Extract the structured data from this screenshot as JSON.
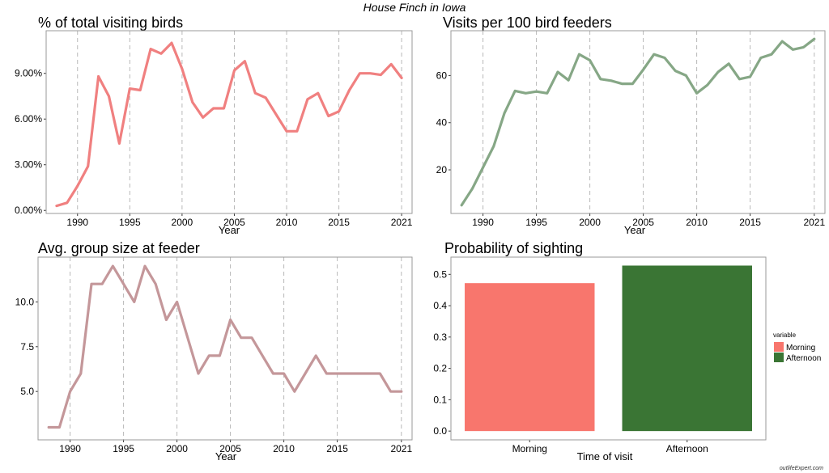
{
  "suptitle": "House Finch in Iowa",
  "watermark": "outlifeExpert.com",
  "chart_data": [
    {
      "type": "line",
      "title": "% of total visiting birds",
      "xlabel": "Year",
      "ylabel": "",
      "color": "#f08080",
      "xlim": [
        1987,
        2022
      ],
      "ylim": [
        -0.2,
        11.8
      ],
      "x_ticks": [
        1990,
        1995,
        2000,
        2005,
        2010,
        2015,
        2021
      ],
      "x_tick_labels": [
        "1990",
        "1995",
        "2000",
        "2005",
        "2010",
        "2015",
        "2021"
      ],
      "y_ticks": [
        0,
        3,
        6,
        9
      ],
      "y_tick_labels": [
        "0.00%",
        "3.00%",
        "6.00%",
        "9.00%"
      ],
      "x": [
        1988,
        1989,
        1990,
        1991,
        1992,
        1993,
        1994,
        1995,
        1996,
        1997,
        1998,
        1999,
        2000,
        2001,
        2002,
        2003,
        2004,
        2005,
        2006,
        2007,
        2008,
        2009,
        2010,
        2011,
        2012,
        2013,
        2014,
        2015,
        2016,
        2017,
        2018,
        2019,
        2020,
        2021
      ],
      "y": [
        0.3,
        0.5,
        1.6,
        2.9,
        8.8,
        7.5,
        4.4,
        8.0,
        7.9,
        10.6,
        10.3,
        11.0,
        9.3,
        7.1,
        6.1,
        6.7,
        6.7,
        9.2,
        9.8,
        7.7,
        7.4,
        6.3,
        5.2,
        5.2,
        7.3,
        7.7,
        6.2,
        6.5,
        7.9,
        9.0,
        9.0,
        8.9,
        9.6,
        8.7
      ]
    },
    {
      "type": "line",
      "title": "Visits per 100 bird feeders",
      "xlabel": "Year",
      "ylabel": "",
      "color": "#86a786",
      "xlim": [
        1987,
        2022
      ],
      "ylim": [
        1.5,
        79
      ],
      "x_ticks": [
        1990,
        1995,
        2000,
        2005,
        2010,
        2015,
        2021
      ],
      "x_tick_labels": [
        "1990",
        "1995",
        "2000",
        "2005",
        "2010",
        "2015",
        "2021"
      ],
      "y_ticks": [
        20,
        40,
        60
      ],
      "y_tick_labels": [
        "20",
        "40",
        "60"
      ],
      "x": [
        1988,
        1989,
        1990,
        1991,
        1992,
        1993,
        1994,
        1995,
        1996,
        1997,
        1998,
        1999,
        2000,
        2001,
        2002,
        2003,
        2004,
        2005,
        2006,
        2007,
        2008,
        2009,
        2010,
        2011,
        2012,
        2013,
        2014,
        2015,
        2016,
        2017,
        2018,
        2019,
        2020,
        2021
      ],
      "y": [
        5,
        12,
        21,
        30,
        44,
        53.5,
        52.5,
        53.2,
        52.5,
        61.5,
        58,
        69,
        66.5,
        58.5,
        57.8,
        56.5,
        56.5,
        62.5,
        69,
        67.5,
        62,
        60,
        52.5,
        56,
        61.5,
        65,
        58.5,
        59.5,
        67.5,
        69,
        74.5,
        71,
        72,
        75.5
      ]
    },
    {
      "type": "line",
      "title": "Avg. group size at feeder",
      "xlabel": "Year",
      "ylabel": "",
      "color": "#c4979a",
      "xlim": [
        1987,
        2022
      ],
      "ylim": [
        2.3,
        12.5
      ],
      "x_ticks": [
        1990,
        1995,
        2000,
        2005,
        2010,
        2015,
        2021
      ],
      "x_tick_labels": [
        "1990",
        "1995",
        "2000",
        "2005",
        "2010",
        "2015",
        "2021"
      ],
      "y_ticks": [
        5,
        7.5,
        10
      ],
      "y_tick_labels": [
        "5.0",
        "7.5",
        "10.0"
      ],
      "x": [
        1988,
        1989,
        1990,
        1991,
        1992,
        1993,
        1994,
        1995,
        1996,
        1997,
        1998,
        1999,
        2000,
        2001,
        2002,
        2003,
        2004,
        2005,
        2006,
        2007,
        2008,
        2009,
        2010,
        2011,
        2012,
        2013,
        2014,
        2015,
        2016,
        2017,
        2018,
        2019,
        2020,
        2021
      ],
      "y": [
        3,
        3,
        5,
        6,
        11,
        11,
        12,
        11,
        10,
        12,
        11,
        9,
        10,
        8,
        6,
        7,
        7,
        9,
        8,
        8,
        7,
        6,
        6,
        5,
        6,
        7,
        6,
        6,
        6,
        6,
        6,
        6,
        5,
        5
      ]
    },
    {
      "type": "bar",
      "title": "Probability of sighting",
      "xlabel": "Time of visit",
      "ylabel": "",
      "categories": [
        "Morning",
        "Afternoon"
      ],
      "values": [
        0.472,
        0.528
      ],
      "colors": [
        "#f8766d",
        "#3a7534"
      ],
      "ylim": [
        -0.028,
        0.555
      ],
      "y_ticks": [
        0,
        0.1,
        0.2,
        0.3,
        0.4,
        0.5
      ],
      "y_tick_labels": [
        "0.0",
        "0.1",
        "0.2",
        "0.3",
        "0.4",
        "0.5"
      ],
      "legend": {
        "title": "variable",
        "entries": [
          "Morning",
          "Afternoon"
        ],
        "placement": "right"
      }
    }
  ]
}
